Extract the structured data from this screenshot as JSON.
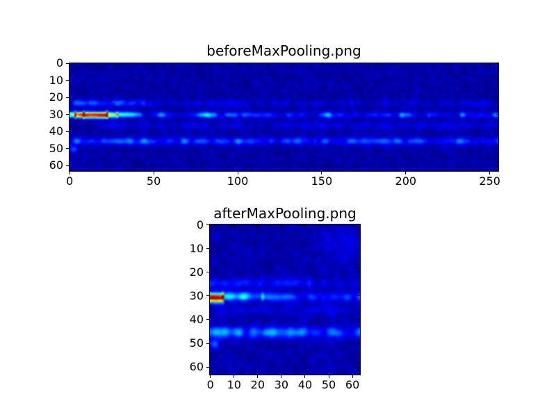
{
  "colors": {
    "figure_background": "#ffffff",
    "frame": "#000000",
    "colormap_low": "#000080",
    "colormap_mid": "#00ffff",
    "colormap_high": "#800000"
  },
  "chart_data": [
    {
      "type": "heatmap",
      "title": "beforeMaxPooling.png",
      "colormap": "jet",
      "data_width": 256,
      "data_height": 64,
      "xlim": [
        -0.5,
        255.5
      ],
      "ylim": [
        63.5,
        -0.5
      ],
      "xticks": [
        0,
        50,
        100,
        150,
        200,
        250
      ],
      "yticks": [
        0,
        10,
        20,
        30,
        40,
        50,
        60
      ],
      "xlabel": "",
      "ylabel": "",
      "value_range": [
        0,
        1
      ],
      "grid": false,
      "legend": "none",
      "summary": "Dark navy background; intense hot streak (red/orange, value ~1.0) along row ~30 for columns 0-25 fading to yellow/green by column 30, then scattered cyan-blue blobs along row ~30 across full width; faint blue band near row ~23; medium blue blob band near row ~46 across full width; faint speckle noise elsewhere.",
      "render_spec": {
        "seed": 7,
        "noise": {
          "base": 0.015,
          "amp": 0.055
        },
        "bands": [
          {
            "y": 23.5,
            "sigma": 1.4,
            "x0": 0,
            "x1": 255,
            "amp": 0.1,
            "amp_end": 0.09,
            "step": 4,
            "min": 0.2,
            "pow": 1.5
          },
          {
            "y": 23.0,
            "sigma": 1.3,
            "x0": 2,
            "x1": 44,
            "amp": 0.18,
            "amp_end": 0.1,
            "step": 4,
            "min": 0.35,
            "pow": 1.0
          },
          {
            "y": 30.0,
            "sigma": 1.15,
            "x0": 0,
            "x1": 3,
            "amp": 0.55,
            "amp_end": 0.75,
            "step": 3,
            "min": 0.7,
            "pow": 1.0
          },
          {
            "y": 30.2,
            "sigma": 1.15,
            "x0": 3,
            "x1": 8,
            "amp": 0.8,
            "amp_end": 0.95,
            "step": 4,
            "min": 0.8,
            "pow": 1.0
          },
          {
            "y": 30.3,
            "sigma": 1.2,
            "x0": 8,
            "x1": 22,
            "amp": 1.0,
            "amp_end": 0.98,
            "step": 5,
            "min": 0.85,
            "pow": 1.0
          },
          {
            "y": 30.2,
            "sigma": 1.15,
            "x0": 22,
            "x1": 28,
            "amp": 0.8,
            "amp_end": 0.55,
            "step": 4,
            "min": 0.7,
            "pow": 1.0
          },
          {
            "y": 30.0,
            "sigma": 1.15,
            "x0": 28,
            "x1": 42,
            "amp": 0.48,
            "amp_end": 0.36,
            "step": 4,
            "min": 0.45,
            "pow": 1.1
          },
          {
            "y": 30.2,
            "sigma": 1.2,
            "x0": 42,
            "x1": 255,
            "amp": 0.36,
            "amp_end": 0.3,
            "step": 4,
            "min": 0.12,
            "pow": 1.9
          },
          {
            "y": 36.5,
            "sigma": 1.7,
            "x0": 15,
            "x1": 255,
            "amp": 0.07,
            "amp_end": 0.07,
            "step": 5,
            "min": 0.3,
            "pow": 1.0
          },
          {
            "y": 45.8,
            "sigma": 1.5,
            "x0": 0,
            "x1": 255,
            "amp": 0.27,
            "amp_end": 0.24,
            "step": 4,
            "min": 0.25,
            "pow": 1.4
          }
        ],
        "spots": [
          {
            "x": 2,
            "y": 50.5,
            "sigma": 1.5,
            "amp": 0.16
          },
          {
            "x": 103,
            "y": 30.0,
            "sigma": 1.2,
            "amp": 0.12
          }
        ]
      }
    },
    {
      "type": "heatmap",
      "title": "afterMaxPooling.png",
      "colormap": "jet",
      "data_width": 64,
      "data_height": 64,
      "xlim": [
        -0.5,
        63.5
      ],
      "ylim": [
        63.5,
        -0.5
      ],
      "xticks": [
        0,
        10,
        20,
        30,
        40,
        50,
        60
      ],
      "yticks": [
        0,
        10,
        20,
        30,
        40,
        50,
        60
      ],
      "xlabel": "",
      "ylabel": "",
      "value_range": [
        0,
        1
      ],
      "grid": false,
      "legend": "none",
      "summary": "Max-pooled version: red/yellow hotspot (value ~1.0) at columns 0-5 of row ~31; cyan-blue blobs along row ~30 to column ~22 then fainter to edge; faint band near row ~24; medium blue band near row ~45 across full width; navy noise background.",
      "render_spec": {
        "seed": 12,
        "noise": {
          "base": 0.02,
          "amp": 0.06
        },
        "bands": [
          {
            "y": 24.5,
            "sigma": 1.3,
            "x0": 0,
            "x1": 63,
            "amp": 0.16,
            "amp_end": 0.1,
            "step": 3,
            "min": 0.3,
            "pow": 1.3
          },
          {
            "y": 30.8,
            "sigma": 1.25,
            "x0": 0,
            "x1": 5,
            "amp": 1.0,
            "amp_end": 0.9,
            "step": 3,
            "min": 0.85,
            "pow": 1.0
          },
          {
            "y": 30.2,
            "sigma": 1.3,
            "x0": 5,
            "x1": 22,
            "amp": 0.52,
            "amp_end": 0.34,
            "step": 3,
            "min": 0.4,
            "pow": 1.2
          },
          {
            "y": 30.4,
            "sigma": 1.3,
            "x0": 22,
            "x1": 63,
            "amp": 0.3,
            "amp_end": 0.25,
            "step": 3,
            "min": 0.25,
            "pow": 1.6
          },
          {
            "y": 36.0,
            "sigma": 1.7,
            "x0": 3,
            "x1": 63,
            "amp": 0.08,
            "amp_end": 0.07,
            "step": 4,
            "min": 0.3,
            "pow": 1.0
          },
          {
            "y": 45.5,
            "sigma": 1.6,
            "x0": 0,
            "x1": 63,
            "amp": 0.3,
            "amp_end": 0.26,
            "step": 3,
            "min": 0.3,
            "pow": 1.3
          }
        ],
        "spots": [
          {
            "x": 1.5,
            "y": 50.5,
            "sigma": 1.4,
            "amp": 0.18
          },
          {
            "x": 56,
            "y": 6,
            "sigma": 7.0,
            "amp": 0.045
          }
        ]
      }
    }
  ]
}
